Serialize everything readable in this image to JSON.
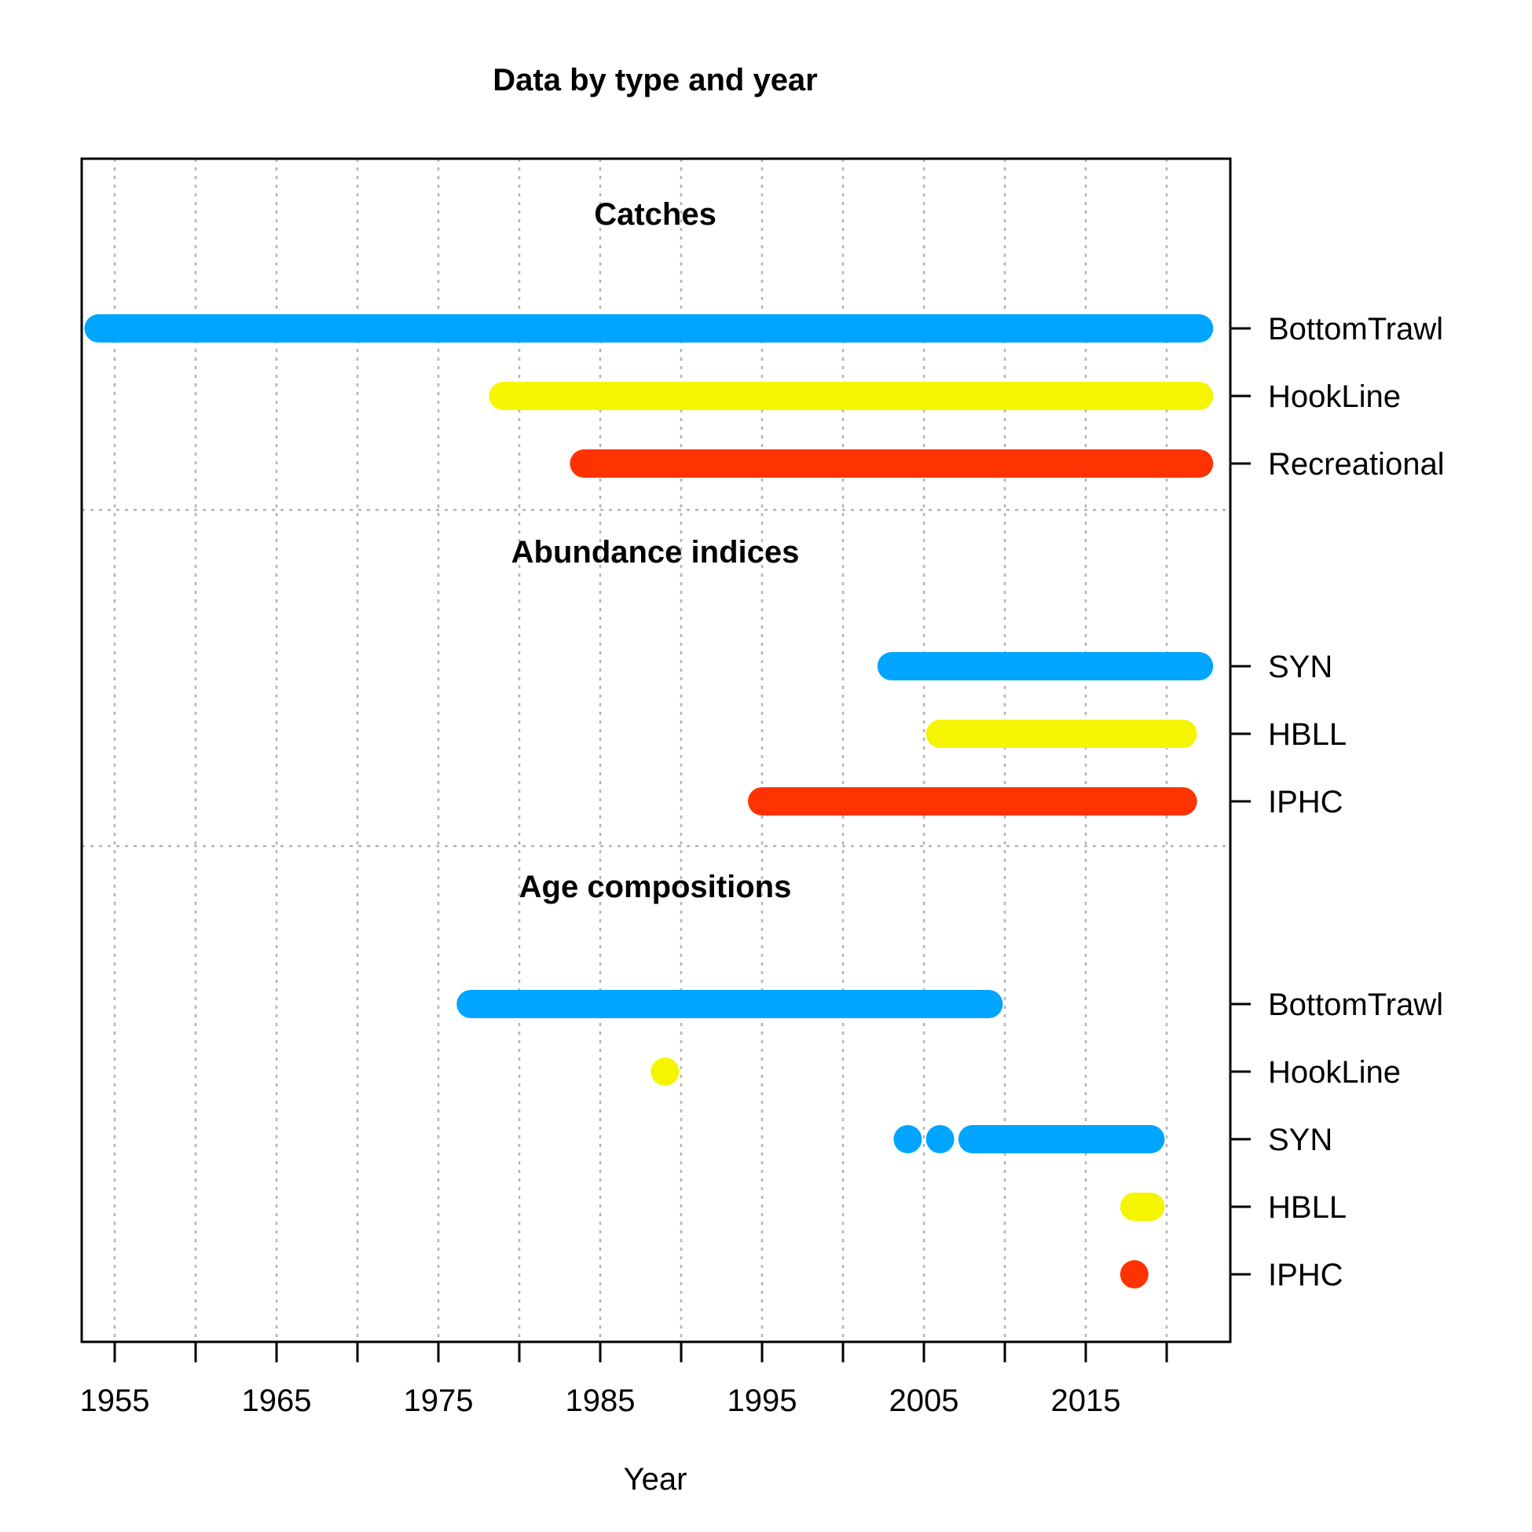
{
  "chart_data": {
    "type": "timeline",
    "title": "Data by type and year",
    "xlabel": "Year",
    "xlim": [
      1953,
      2024
    ],
    "xticks": [
      1955,
      1960,
      1965,
      1970,
      1975,
      1980,
      1985,
      1990,
      1995,
      2000,
      2005,
      2010,
      2015,
      2020
    ],
    "xtick_labels": [
      "1955",
      "",
      "1965",
      "",
      "1975",
      "",
      "1985",
      "",
      "1995",
      "",
      "2005",
      "",
      "2015",
      ""
    ],
    "grid": true,
    "colors": {
      "blue": "#00a5ff",
      "yellow": "#f5f500",
      "red": "#ff3300"
    },
    "sections": [
      {
        "label": "Catches",
        "rows": [
          {
            "name": "BottomTrawl",
            "color": "#00a5ff",
            "segments": [
              [
                1954,
                2022
              ]
            ]
          },
          {
            "name": "HookLine",
            "color": "#f5f500",
            "segments": [
              [
                1979,
                2022
              ]
            ]
          },
          {
            "name": "Recreational",
            "color": "#ff3300",
            "segments": [
              [
                1984,
                2022
              ]
            ]
          }
        ]
      },
      {
        "label": "Abundance indices",
        "rows": [
          {
            "name": "SYN",
            "color": "#00a5ff",
            "segments": [
              [
                2003,
                2022
              ]
            ]
          },
          {
            "name": "HBLL",
            "color": "#f5f500",
            "segments": [
              [
                2006,
                2021
              ]
            ]
          },
          {
            "name": "IPHC",
            "color": "#ff3300",
            "segments": [
              [
                1995,
                2021
              ]
            ]
          }
        ]
      },
      {
        "label": "Age compositions",
        "rows": [
          {
            "name": "BottomTrawl",
            "color": "#00a5ff",
            "segments": [
              [
                1977,
                2009
              ]
            ]
          },
          {
            "name": "HookLine",
            "color": "#f5f500",
            "segments": [
              [
                1989,
                1989
              ]
            ]
          },
          {
            "name": "SYN",
            "color": "#00a5ff",
            "segments": [
              [
                2004,
                2004
              ],
              [
                2006,
                2006
              ],
              [
                2008,
                2019
              ]
            ]
          },
          {
            "name": "HBLL",
            "color": "#f5f500",
            "segments": [
              [
                2018,
                2019
              ]
            ]
          },
          {
            "name": "IPHC",
            "color": "#ff3300",
            "segments": [
              [
                2018,
                2018
              ]
            ]
          }
        ]
      }
    ]
  }
}
